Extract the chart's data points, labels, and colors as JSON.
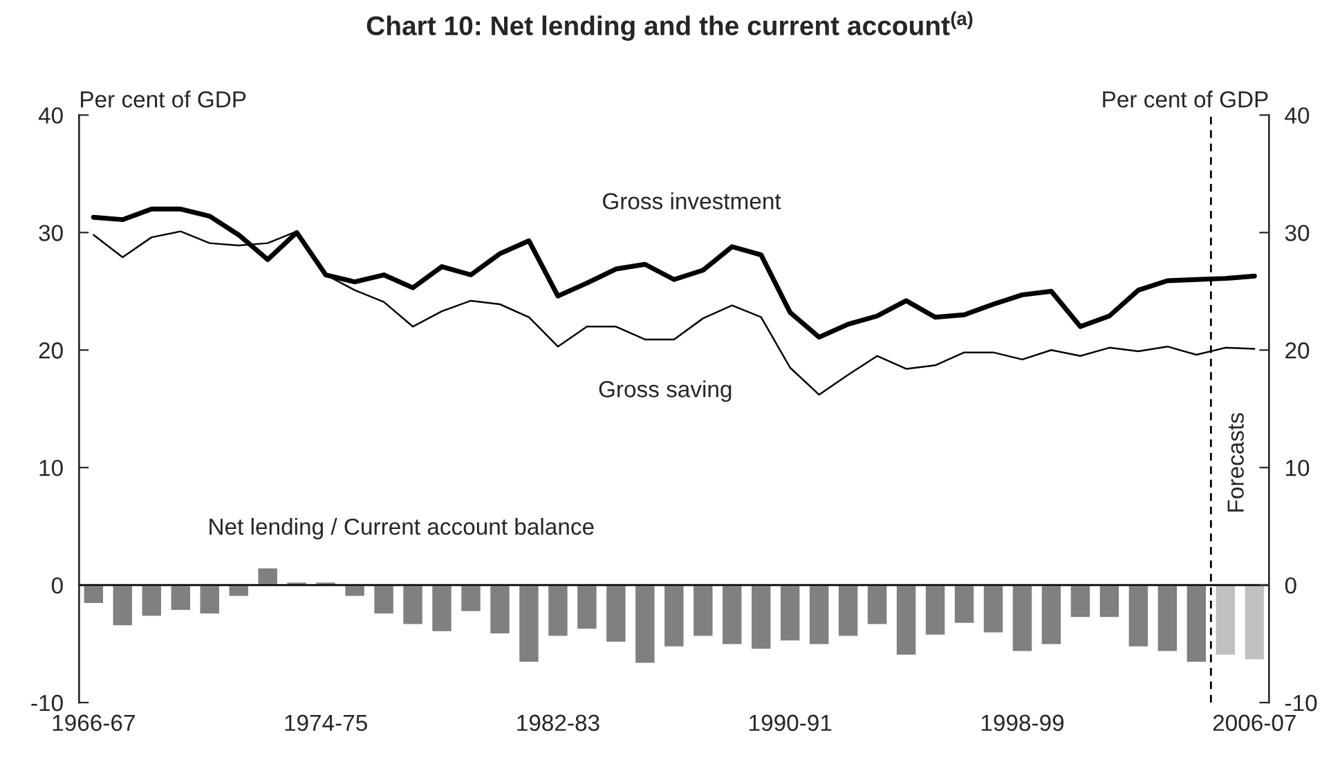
{
  "chart_data": {
    "type": "bar",
    "title": "Chart 10: Net lending and the current account$^{(a)}$",
    "ylabel": "Per cent of GDP",
    "y2label": "Per cent of GDP",
    "categories": [
      "1966-67",
      null,
      null,
      null,
      null,
      null,
      null,
      null,
      "1974-75",
      null,
      null,
      null,
      null,
      null,
      null,
      null,
      "1982-83",
      null,
      null,
      null,
      null,
      null,
      null,
      null,
      "1990-91",
      null,
      null,
      null,
      null,
      null,
      null,
      null,
      "1998-99",
      null,
      null,
      null,
      null,
      null,
      null,
      null,
      "2006-07"
    ],
    "series": [
      {
        "name": "Net lending / Current account balance",
        "colors": [
          "#808080",
          "#808080",
          "#808080",
          "#808080",
          "#808080",
          "#808080",
          "#808080",
          "#808080",
          "#808080",
          "#808080",
          "#808080",
          "#808080",
          "#808080",
          "#808080",
          "#808080",
          "#808080",
          "#808080",
          "#808080",
          "#808080",
          "#808080",
          "#808080",
          "#808080",
          "#808080",
          "#808080",
          "#808080",
          "#808080",
          "#808080",
          "#808080",
          "#808080",
          "#808080",
          "#808080",
          "#808080",
          "#808080",
          "#808080",
          "#808080",
          "#808080",
          "#808080",
          "#808080",
          "#808080",
          "#c0c0c0",
          "#c0c0c0"
        ],
        "values": [
          -1.6,
          -3.5,
          -2.7,
          -2.2,
          -2.5,
          -1.0,
          1.5,
          0.3,
          0.3,
          -1.0,
          -2.5,
          -3.4,
          -4.0,
          -2.3,
          -4.2,
          -6.6,
          -4.4,
          -3.8,
          -4.9,
          -6.7,
          -5.3,
          -4.4,
          -5.1,
          -5.5,
          -4.8,
          -5.1,
          -4.4,
          -3.4,
          -6.0,
          -4.3,
          -3.3,
          -4.1,
          -5.7,
          -5.1,
          -2.8,
          -2.8,
          -5.3,
          -5.7,
          -6.6,
          -6.0,
          -6.4
        ]
      },
      {
        "name": "Gross investment",
        "type": "line",
        "color": "#000000",
        "values": [
          31.3,
          31.1,
          32.0,
          32.0,
          31.4,
          29.8,
          27.7,
          30.0,
          26.4,
          25.8,
          26.4,
          25.3,
          27.1,
          26.4,
          28.2,
          29.3,
          24.6,
          25.7,
          26.9,
          27.3,
          26.0,
          26.8,
          28.8,
          28.1,
          23.2,
          21.1,
          22.2,
          22.9,
          24.2,
          22.8,
          23.0,
          23.9,
          24.7,
          25.0,
          22.0,
          22.9,
          25.1,
          25.9,
          26.0,
          26.1,
          26.3
        ]
      },
      {
        "name": "Gross saving",
        "type": "line",
        "color": "#000000",
        "values": [
          29.8,
          27.9,
          29.6,
          30.1,
          29.1,
          28.9,
          29.1,
          30.1,
          26.4,
          25.1,
          24.1,
          22.0,
          23.3,
          24.2,
          23.9,
          22.8,
          20.3,
          22.0,
          22.0,
          20.9,
          20.9,
          22.7,
          23.8,
          22.8,
          18.5,
          16.2,
          17.9,
          19.5,
          18.4,
          18.7,
          19.8,
          19.8,
          19.2,
          20.0,
          19.5,
          20.2,
          19.9,
          20.3,
          19.6,
          20.2,
          20.1
        ]
      }
    ],
    "ylim": [
      -10,
      40
    ],
    "yticks": [
      -10,
      0,
      10,
      20,
      30,
      40
    ],
    "y2lim": [
      -10,
      40
    ],
    "y2ticks": [
      -10,
      0,
      10,
      20,
      30,
      40
    ],
    "annotations": [
      "Forecasts"
    ],
    "grid": false,
    "legend": false
  }
}
